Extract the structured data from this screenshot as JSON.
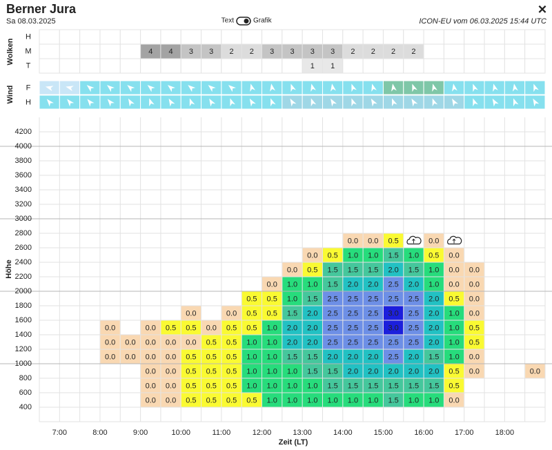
{
  "header": {
    "title": "Berner Jura",
    "date": "Sa 08.03.2025",
    "toggle_left": "Text",
    "toggle_right": "Grafik",
    "model": "ICON-EU vom 06.03.2025 15:44 UTC",
    "close": "✕"
  },
  "clouds": {
    "label": "Wolken",
    "rows": [
      {
        "label": "H",
        "values": [
          null,
          null,
          null,
          null,
          null,
          null,
          null,
          null,
          null,
          null,
          null,
          null,
          null,
          null,
          null,
          null,
          null,
          null,
          null,
          null,
          null,
          null,
          null,
          null,
          null
        ]
      },
      {
        "label": "M",
        "values": [
          null,
          null,
          null,
          null,
          null,
          4,
          4,
          3,
          3,
          2,
          2,
          3,
          3,
          3,
          3,
          2,
          2,
          2,
          2,
          null,
          null,
          null,
          null,
          null,
          null
        ]
      },
      {
        "label": "T",
        "values": [
          null,
          null,
          null,
          null,
          null,
          null,
          null,
          null,
          null,
          null,
          null,
          null,
          null,
          1,
          1,
          null,
          null,
          null,
          null,
          null,
          null,
          null,
          null,
          null,
          null
        ]
      }
    ]
  },
  "wind": {
    "label": "Wind",
    "rows": [
      {
        "label": "F"
      },
      {
        "label": "H"
      }
    ]
  },
  "thermals": {
    "y_label": "Höhe",
    "x_label": "Zeit (LT)",
    "ylim": [
      200,
      4400
    ],
    "yticks": [
      400,
      600,
      800,
      1000,
      1200,
      1400,
      1600,
      1800,
      2000,
      2200,
      2400,
      2600,
      2800,
      3000,
      3200,
      3400,
      3600,
      3800,
      4000,
      4200
    ],
    "xticks": [
      "7:00",
      "8:00",
      "9:00",
      "10:00",
      "11:00",
      "12:00",
      "13:00",
      "14:00",
      "15:00",
      "16:00",
      "17:00",
      "18:00"
    ],
    "rows": [
      [
        null,
        null,
        null,
        null,
        null,
        "0.0",
        "0.0",
        "0.5",
        "0.5",
        "0.5",
        "0.5",
        "1.0",
        "1.0",
        "1.0",
        "1.0",
        "1.0",
        "1.0",
        "1.5",
        "1.0",
        "1.0",
        "0.0",
        null,
        null,
        null,
        null
      ],
      [
        null,
        null,
        null,
        null,
        null,
        "0.0",
        "0.0",
        "0.5",
        "0.5",
        "0.5",
        "1.0",
        "1.0",
        "1.0",
        "1.0",
        "1.5",
        "1.5",
        "1.5",
        "1.5",
        "1.5",
        "1.5",
        "0.5",
        null,
        null,
        null,
        null
      ],
      [
        null,
        null,
        null,
        null,
        null,
        "0.0",
        "0.0",
        "0.5",
        "0.5",
        "0.5",
        "1.0",
        "1.0",
        "1.0",
        "1.5",
        "1.5",
        "2.0",
        "2.0",
        "2.0",
        "2.0",
        "2.0",
        "0.5",
        "0.0",
        null,
        null,
        "0.0"
      ],
      [
        null,
        null,
        null,
        "0.0",
        "0.0",
        "0.0",
        "0.0",
        "0.5",
        "0.5",
        "0.5",
        "1.0",
        "1.0",
        "1.5",
        "1.5",
        "2.0",
        "2.0",
        "2.0",
        "2.5",
        "2.0",
        "1.5",
        "1.0",
        "0.0",
        null,
        null,
        null
      ],
      [
        null,
        null,
        null,
        "0.0",
        "0.0",
        "0.0",
        "0.0",
        "0.0",
        "0.5",
        "0.5",
        "1.0",
        "1.0",
        "2.0",
        "2.0",
        "2.5",
        "2.5",
        "2.5",
        "2.5",
        "2.5",
        "2.0",
        "1.0",
        "0.5",
        null,
        null,
        null
      ],
      [
        null,
        null,
        null,
        "0.0",
        null,
        "0.0",
        "0.5",
        "0.5",
        "0.0",
        "0.5",
        "0.5",
        "1.0",
        "2.0",
        "2.0",
        "2.5",
        "2.5",
        "2.5",
        "3.0",
        "2.5",
        "2.0",
        "1.0",
        "0.5",
        null,
        null,
        null
      ],
      [
        null,
        null,
        null,
        null,
        null,
        null,
        null,
        "0.0",
        null,
        "0.0",
        "0.5",
        "0.5",
        "1.5",
        "2.0",
        "2.5",
        "2.5",
        "2.5",
        "3.0",
        "2.5",
        "2.0",
        "1.0",
        "0.0",
        null,
        null,
        null
      ],
      [
        null,
        null,
        null,
        null,
        null,
        null,
        null,
        null,
        null,
        null,
        "0.5",
        "0.5",
        "1.0",
        "1.5",
        "2.5",
        "2.5",
        "2.5",
        "2.5",
        "2.5",
        "2.0",
        "0.5",
        "0.0",
        null,
        null,
        null
      ],
      [
        null,
        null,
        null,
        null,
        null,
        null,
        null,
        null,
        null,
        null,
        null,
        "0.0",
        "1.0",
        "1.0",
        "1.5",
        "2.0",
        "2.0",
        "2.5",
        "2.0",
        "1.0",
        "0.0",
        "0.0",
        null,
        null,
        null
      ],
      [
        null,
        null,
        null,
        null,
        null,
        null,
        null,
        null,
        null,
        null,
        null,
        null,
        "0.0",
        "0.5",
        "1.5",
        "1.5",
        "1.5",
        "2.0",
        "1.5",
        "1.0",
        "0.0",
        "0.0",
        null,
        null,
        null
      ],
      [
        null,
        null,
        null,
        null,
        null,
        null,
        null,
        null,
        null,
        null,
        null,
        null,
        null,
        "0.0",
        "0.5",
        "1.0",
        "1.0",
        "1.5",
        "1.0",
        "0.5",
        "0.0",
        null,
        null,
        null,
        null
      ],
      [
        null,
        null,
        null,
        null,
        null,
        null,
        null,
        null,
        null,
        null,
        null,
        null,
        null,
        null,
        null,
        "0.0",
        "0.0",
        "0.5",
        null,
        "0.0",
        null,
        null,
        null,
        null,
        null
      ]
    ]
  }
}
